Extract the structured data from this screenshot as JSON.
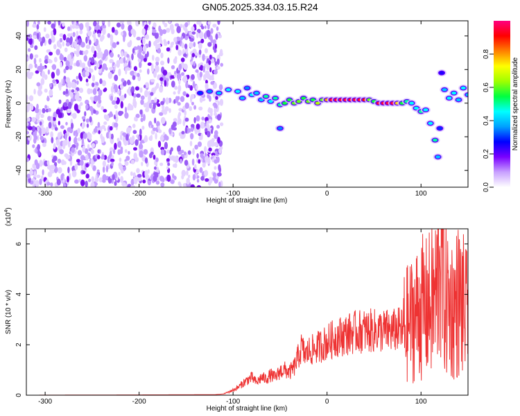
{
  "title": "GN05.2025.334.03.15.R24",
  "chart_data": [
    {
      "type": "heatmap",
      "xlabel": "Height of straight line (km)",
      "ylabel": "Frequency (Hz)",
      "xlim": [
        -320,
        150
      ],
      "ylim": [
        -50,
        49
      ],
      "xticks": [
        -300,
        -200,
        -100,
        0,
        100
      ],
      "yticks": [
        -40,
        -20,
        0,
        20,
        40
      ],
      "colorbar": {
        "label": "Normalized spectral amplitude",
        "range": [
          0,
          1
        ],
        "ticks": [
          "0.0",
          "0.2",
          "0.4",
          "0.6",
          "0.8"
        ],
        "colors": [
          "#ffffff",
          "#c8a0ff",
          "#7a00ff",
          "#0000ff",
          "#00a0ff",
          "#00ffff",
          "#00ff40",
          "#a0ff00",
          "#ffff00",
          "#ff8000",
          "#ff0000",
          "#ff0080"
        ]
      },
      "noise_region": {
        "x_from": -320,
        "x_to": -112,
        "f_from": -50,
        "f_to": 49
      },
      "signal_track": [
        {
          "x": -135,
          "f": 6,
          "a": 0.3
        },
        {
          "x": -125,
          "f": 7,
          "a": 0.35
        },
        {
          "x": -115,
          "f": 6,
          "a": 0.4
        },
        {
          "x": -105,
          "f": 8,
          "a": 0.45
        },
        {
          "x": -95,
          "f": 7,
          "a": 0.45
        },
        {
          "x": -90,
          "f": 3,
          "a": 0.4
        },
        {
          "x": -85,
          "f": 9,
          "a": 0.35
        },
        {
          "x": -80,
          "f": 5,
          "a": 0.45
        },
        {
          "x": -75,
          "f": 6,
          "a": 0.4
        },
        {
          "x": -70,
          "f": 2,
          "a": 0.4
        },
        {
          "x": -65,
          "f": 4,
          "a": 0.5
        },
        {
          "x": -60,
          "f": 1,
          "a": 0.45
        },
        {
          "x": -55,
          "f": 3,
          "a": 0.5
        },
        {
          "x": -50,
          "f": -1,
          "a": 0.5
        },
        {
          "x": -45,
          "f": 0,
          "a": 0.55
        },
        {
          "x": -40,
          "f": 2,
          "a": 0.55
        },
        {
          "x": -35,
          "f": 0,
          "a": 0.6
        },
        {
          "x": -30,
          "f": 1,
          "a": 0.6
        },
        {
          "x": -25,
          "f": 3,
          "a": 0.55
        },
        {
          "x": -20,
          "f": 1,
          "a": 0.6
        },
        {
          "x": -15,
          "f": 2,
          "a": 0.55
        },
        {
          "x": -10,
          "f": 0,
          "a": 0.65
        },
        {
          "x": -5,
          "f": 2,
          "a": 0.6
        },
        {
          "x": 0,
          "f": 2,
          "a": 0.8
        },
        {
          "x": 5,
          "f": 2,
          "a": 0.95
        },
        {
          "x": 10,
          "f": 2,
          "a": 0.95
        },
        {
          "x": 15,
          "f": 2,
          "a": 0.95
        },
        {
          "x": 20,
          "f": 2,
          "a": 0.95
        },
        {
          "x": 25,
          "f": 2,
          "a": 0.95
        },
        {
          "x": 30,
          "f": 2,
          "a": 0.95
        },
        {
          "x": 35,
          "f": 2,
          "a": 0.95
        },
        {
          "x": 40,
          "f": 2,
          "a": 0.9
        },
        {
          "x": 45,
          "f": 2,
          "a": 0.6
        },
        {
          "x": 50,
          "f": 1,
          "a": 0.55
        },
        {
          "x": 55,
          "f": 0,
          "a": 0.95
        },
        {
          "x": 60,
          "f": 0,
          "a": 0.95
        },
        {
          "x": 65,
          "f": 0,
          "a": 0.95
        },
        {
          "x": 70,
          "f": 0,
          "a": 0.95
        },
        {
          "x": 75,
          "f": 0,
          "a": 0.75
        },
        {
          "x": 80,
          "f": 0,
          "a": 0.55
        },
        {
          "x": 85,
          "f": 1,
          "a": 0.5
        },
        {
          "x": 90,
          "f": 0,
          "a": 0.45
        },
        {
          "x": 95,
          "f": -3,
          "a": 0.45
        },
        {
          "x": 100,
          "f": -5,
          "a": 0.5
        },
        {
          "x": 105,
          "f": -4,
          "a": 0.45
        },
        {
          "x": 110,
          "f": -12,
          "a": 0.45
        },
        {
          "x": 115,
          "f": -22,
          "a": 0.5
        },
        {
          "x": 118,
          "f": -32,
          "a": 0.4
        },
        {
          "x": 120,
          "f": -15,
          "a": 0.3
        },
        {
          "x": 122,
          "f": 18,
          "a": 0.25
        },
        {
          "x": 125,
          "f": 8,
          "a": 0.4
        },
        {
          "x": 130,
          "f": 3,
          "a": 0.45
        },
        {
          "x": 135,
          "f": 6,
          "a": 0.45
        },
        {
          "x": 140,
          "f": 2,
          "a": 0.4
        },
        {
          "x": 145,
          "f": 9,
          "a": 0.45
        },
        {
          "x": 150,
          "f": 5,
          "a": 0.4
        },
        {
          "x": -50,
          "f": -15,
          "a": 0.35
        }
      ]
    },
    {
      "type": "line",
      "xlabel": "Height of straight line (km)",
      "ylabel": "SNR (10 * v/v)",
      "yscale_label": "(x10",
      "yscale_exp": "4",
      "yscale_close": ")",
      "xlim": [
        -320,
        150
      ],
      "ylim": [
        0,
        6.6
      ],
      "xticks": [
        -300,
        -200,
        -100,
        0,
        100
      ],
      "yticks": [
        0,
        2,
        4,
        6
      ],
      "color": "#ee3333",
      "series": [
        {
          "x": [
            -320,
            -120,
            -110,
            -100,
            -95,
            -90,
            -85,
            -80,
            -75,
            -70,
            -65,
            -60,
            -55,
            -50,
            -45,
            -40,
            -35,
            -30,
            -27,
            -25,
            -22,
            -20,
            -15,
            -10,
            -5,
            0,
            5,
            10,
            20,
            30,
            40,
            50,
            60,
            70,
            75,
            80,
            85,
            90,
            95,
            100,
            105,
            110,
            115,
            118,
            120,
            125,
            130,
            135,
            140,
            145,
            150
          ],
          "y": [
            0.0,
            0.02,
            0.05,
            0.2,
            0.3,
            0.45,
            0.6,
            0.7,
            0.5,
            0.7,
            0.65,
            0.8,
            0.7,
            0.95,
            1.0,
            0.9,
            1.1,
            1.6,
            1.9,
            1.7,
            1.6,
            1.75,
            1.8,
            1.9,
            2.0,
            2.1,
            2.2,
            2.3,
            2.4,
            2.5,
            2.55,
            2.55,
            2.55,
            2.55,
            2.6,
            2.6,
            2.8,
            3.0,
            3.2,
            3.5,
            3.4,
            3.6,
            3.8,
            4.5,
            6.5,
            4.0,
            3.6,
            3.4,
            3.8,
            3.5,
            3.0
          ],
          "jitter_from": -110,
          "jitter_amp_pct": 35
        }
      ]
    }
  ]
}
